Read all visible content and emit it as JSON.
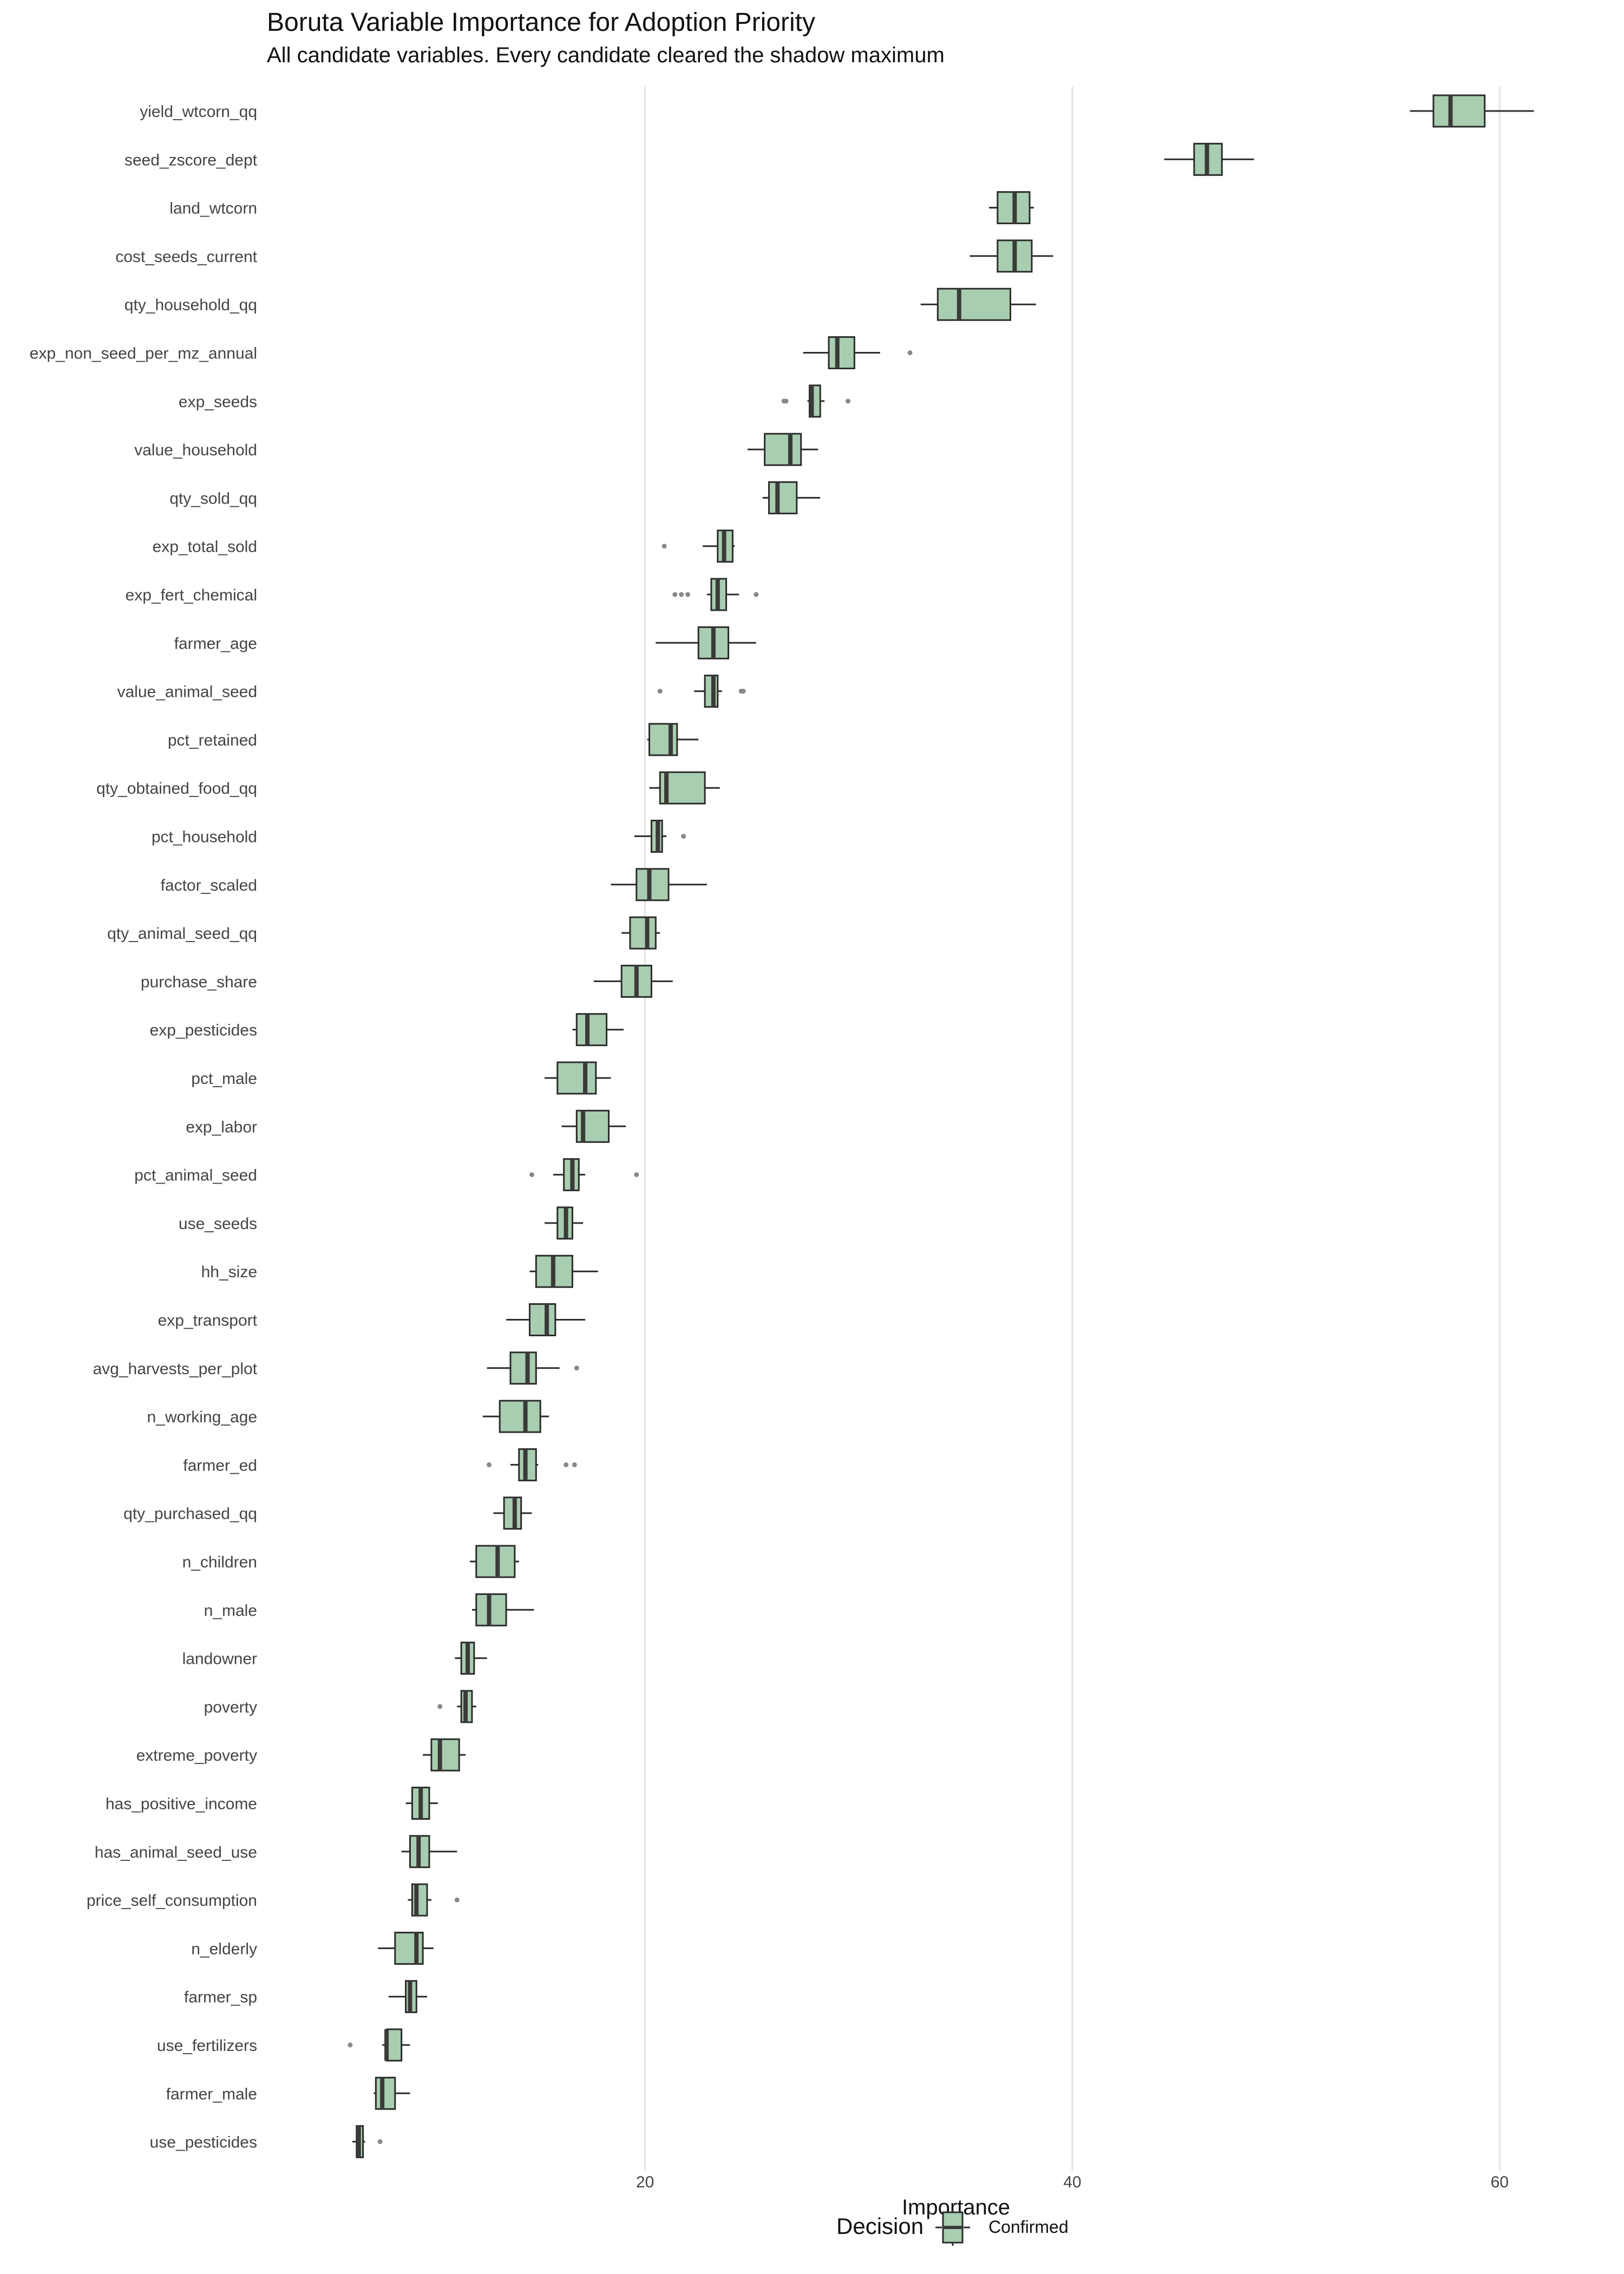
{
  "chart_data": {
    "type": "boxplot",
    "orientation": "horizontal",
    "title": "Boruta Variable Importance for Adoption Priority",
    "subtitle": "All candidate variables. Every candidate cleared the shadow maximum",
    "xlabel": "Importance",
    "ylabel": "",
    "x_ticks": [
      20,
      40,
      60
    ],
    "xlim": [
      2.3,
      64.3
    ],
    "grid": "vertical major gridlines",
    "legend": {
      "title": "Decision",
      "position": "bottom",
      "entries": [
        {
          "label": "Confirmed",
          "color": "#a8cdb0"
        }
      ]
    },
    "colors": {
      "box_fill": "#a8cdb0",
      "box_stroke": "#2b2b2b",
      "median": "#3a3a3a",
      "outlier": "#888888",
      "grid": "#e3e3e3"
    },
    "variables": [
      {
        "name": "yield_wtcorn_qq",
        "whisker_low": 55.8,
        "q1": 56.9,
        "median": 57.7,
        "q3": 59.3,
        "whisker_high": 61.6,
        "outliers": []
      },
      {
        "name": "seed_zscore_dept",
        "whisker_low": 44.3,
        "q1": 45.7,
        "median": 46.3,
        "q3": 47.0,
        "whisker_high": 48.5,
        "outliers": []
      },
      {
        "name": "land_wtcorn",
        "whisker_low": 36.1,
        "q1": 36.5,
        "median": 37.3,
        "q3": 38.0,
        "whisker_high": 38.2,
        "outliers": []
      },
      {
        "name": "cost_seeds_current",
        "whisker_low": 35.2,
        "q1": 36.5,
        "median": 37.3,
        "q3": 38.1,
        "whisker_high": 39.1,
        "outliers": []
      },
      {
        "name": "qty_household_qq",
        "whisker_low": 32.9,
        "q1": 33.7,
        "median": 34.7,
        "q3": 37.1,
        "whisker_high": 38.3,
        "outliers": []
      },
      {
        "name": "exp_non_seed_per_mz_annual",
        "whisker_low": 27.4,
        "q1": 28.6,
        "median": 29.0,
        "q3": 29.8,
        "whisker_high": 31.0,
        "outliers": [
          32.4
        ]
      },
      {
        "name": "exp_seeds",
        "whisker_low": 27.6,
        "q1": 27.7,
        "median": 27.8,
        "q3": 28.2,
        "whisker_high": 28.4,
        "outliers": [
          26.5,
          26.6,
          29.5
        ]
      },
      {
        "name": "value_household",
        "whisker_low": 24.8,
        "q1": 25.6,
        "median": 26.8,
        "q3": 27.3,
        "whisker_high": 28.1,
        "outliers": []
      },
      {
        "name": "qty_sold_qq",
        "whisker_low": 25.5,
        "q1": 25.8,
        "median": 26.2,
        "q3": 27.1,
        "whisker_high": 28.2,
        "outliers": []
      },
      {
        "name": "exp_total_sold",
        "whisker_low": 22.7,
        "q1": 23.4,
        "median": 23.7,
        "q3": 24.1,
        "whisker_high": 24.2,
        "outliers": [
          20.9
        ]
      },
      {
        "name": "exp_fert_chemical",
        "whisker_low": 22.9,
        "q1": 23.1,
        "median": 23.4,
        "q3": 23.8,
        "whisker_high": 24.4,
        "outliers": [
          21.4,
          21.7,
          22.0,
          25.2
        ]
      },
      {
        "name": "farmer_age",
        "whisker_low": 20.5,
        "q1": 22.5,
        "median": 23.2,
        "q3": 23.9,
        "whisker_high": 25.2,
        "outliers": []
      },
      {
        "name": "value_animal_seed",
        "whisker_low": 22.3,
        "q1": 22.8,
        "median": 23.2,
        "q3": 23.4,
        "whisker_high": 23.6,
        "outliers": [
          20.7,
          24.5,
          24.6
        ]
      },
      {
        "name": "pct_retained",
        "whisker_low": 20.1,
        "q1": 20.2,
        "median": 21.2,
        "q3": 21.5,
        "whisker_high": 22.5,
        "outliers": []
      },
      {
        "name": "qty_obtained_food_qq",
        "whisker_low": 20.2,
        "q1": 20.7,
        "median": 21.0,
        "q3": 22.8,
        "whisker_high": 23.5,
        "outliers": []
      },
      {
        "name": "pct_household",
        "whisker_low": 19.5,
        "q1": 20.3,
        "median": 20.6,
        "q3": 20.8,
        "whisker_high": 21.0,
        "outliers": [
          21.8
        ]
      },
      {
        "name": "factor_scaled",
        "whisker_low": 18.4,
        "q1": 19.6,
        "median": 20.2,
        "q3": 21.1,
        "whisker_high": 22.9,
        "outliers": []
      },
      {
        "name": "qty_animal_seed_qq",
        "whisker_low": 18.9,
        "q1": 19.3,
        "median": 20.1,
        "q3": 20.5,
        "whisker_high": 20.7,
        "outliers": []
      },
      {
        "name": "purchase_share",
        "whisker_low": 17.6,
        "q1": 18.9,
        "median": 19.6,
        "q3": 20.3,
        "whisker_high": 21.3,
        "outliers": []
      },
      {
        "name": "exp_pesticides",
        "whisker_low": 16.6,
        "q1": 16.8,
        "median": 17.3,
        "q3": 18.2,
        "whisker_high": 19.0,
        "outliers": []
      },
      {
        "name": "pct_male",
        "whisker_low": 15.3,
        "q1": 15.9,
        "median": 17.2,
        "q3": 17.7,
        "whisker_high": 18.4,
        "outliers": []
      },
      {
        "name": "exp_labor",
        "whisker_low": 16.1,
        "q1": 16.8,
        "median": 17.1,
        "q3": 18.3,
        "whisker_high": 19.1,
        "outliers": []
      },
      {
        "name": "pct_animal_seed",
        "whisker_low": 15.7,
        "q1": 16.2,
        "median": 16.6,
        "q3": 16.9,
        "whisker_high": 17.2,
        "outliers": [
          14.7,
          19.6
        ]
      },
      {
        "name": "use_seeds",
        "whisker_low": 15.3,
        "q1": 15.9,
        "median": 16.3,
        "q3": 16.6,
        "whisker_high": 17.1,
        "outliers": []
      },
      {
        "name": "hh_size",
        "whisker_low": 14.6,
        "q1": 14.9,
        "median": 15.7,
        "q3": 16.6,
        "whisker_high": 17.8,
        "outliers": []
      },
      {
        "name": "exp_transport",
        "whisker_low": 13.5,
        "q1": 14.6,
        "median": 15.4,
        "q3": 15.8,
        "whisker_high": 17.2,
        "outliers": []
      },
      {
        "name": "avg_harvests_per_plot",
        "whisker_low": 12.6,
        "q1": 13.7,
        "median": 14.5,
        "q3": 14.9,
        "whisker_high": 16.0,
        "outliers": [
          16.8
        ]
      },
      {
        "name": "n_working_age",
        "whisker_low": 12.4,
        "q1": 13.2,
        "median": 14.4,
        "q3": 15.1,
        "whisker_high": 15.5,
        "outliers": []
      },
      {
        "name": "farmer_ed",
        "whisker_low": 13.7,
        "q1": 14.1,
        "median": 14.4,
        "q3": 14.9,
        "whisker_high": 15.0,
        "outliers": [
          12.7,
          16.3,
          16.7
        ]
      },
      {
        "name": "qty_purchased_qq",
        "whisker_low": 12.9,
        "q1": 13.4,
        "median": 13.9,
        "q3": 14.2,
        "whisker_high": 14.7,
        "outliers": []
      },
      {
        "name": "n_children",
        "whisker_low": 11.8,
        "q1": 12.1,
        "median": 13.1,
        "q3": 13.9,
        "whisker_high": 14.1,
        "outliers": []
      },
      {
        "name": "n_male",
        "whisker_low": 11.9,
        "q1": 12.1,
        "median": 12.7,
        "q3": 13.5,
        "whisker_high": 14.8,
        "outliers": []
      },
      {
        "name": "landowner",
        "whisker_low": 11.1,
        "q1": 11.4,
        "median": 11.7,
        "q3": 12.0,
        "whisker_high": 12.6,
        "outliers": []
      },
      {
        "name": "poverty",
        "whisker_low": 11.2,
        "q1": 11.4,
        "median": 11.6,
        "q3": 11.9,
        "whisker_high": 12.1,
        "outliers": [
          10.4
        ]
      },
      {
        "name": "extreme_poverty",
        "whisker_low": 9.6,
        "q1": 10.0,
        "median": 10.4,
        "q3": 11.3,
        "whisker_high": 11.6,
        "outliers": []
      },
      {
        "name": "has_positive_income",
        "whisker_low": 8.8,
        "q1": 9.1,
        "median": 9.5,
        "q3": 9.9,
        "whisker_high": 10.3,
        "outliers": []
      },
      {
        "name": "has_animal_seed_use",
        "whisker_low": 8.6,
        "q1": 9.0,
        "median": 9.4,
        "q3": 9.9,
        "whisker_high": 11.2,
        "outliers": []
      },
      {
        "name": "price_self_consumption",
        "whisker_low": 8.9,
        "q1": 9.1,
        "median": 9.3,
        "q3": 9.8,
        "whisker_high": 10.0,
        "outliers": [
          11.2
        ]
      },
      {
        "name": "n_elderly",
        "whisker_low": 7.5,
        "q1": 8.3,
        "median": 9.3,
        "q3": 9.6,
        "whisker_high": 10.1,
        "outliers": []
      },
      {
        "name": "farmer_sp",
        "whisker_low": 8.0,
        "q1": 8.8,
        "median": 9.0,
        "q3": 9.3,
        "whisker_high": 9.8,
        "outliers": []
      },
      {
        "name": "use_fertilizers",
        "whisker_low": 7.7,
        "q1": 7.9,
        "median": 7.9,
        "q3": 8.6,
        "whisker_high": 9.0,
        "outliers": [
          6.2
        ]
      },
      {
        "name": "farmer_male",
        "whisker_low": 7.3,
        "q1": 7.4,
        "median": 7.7,
        "q3": 8.3,
        "whisker_high": 9.0,
        "outliers": []
      },
      {
        "name": "use_pesticides",
        "whisker_low": 6.3,
        "q1": 6.5,
        "median": 6.6,
        "q3": 6.8,
        "whisker_high": 6.9,
        "outliers": [
          7.6
        ]
      }
    ]
  }
}
